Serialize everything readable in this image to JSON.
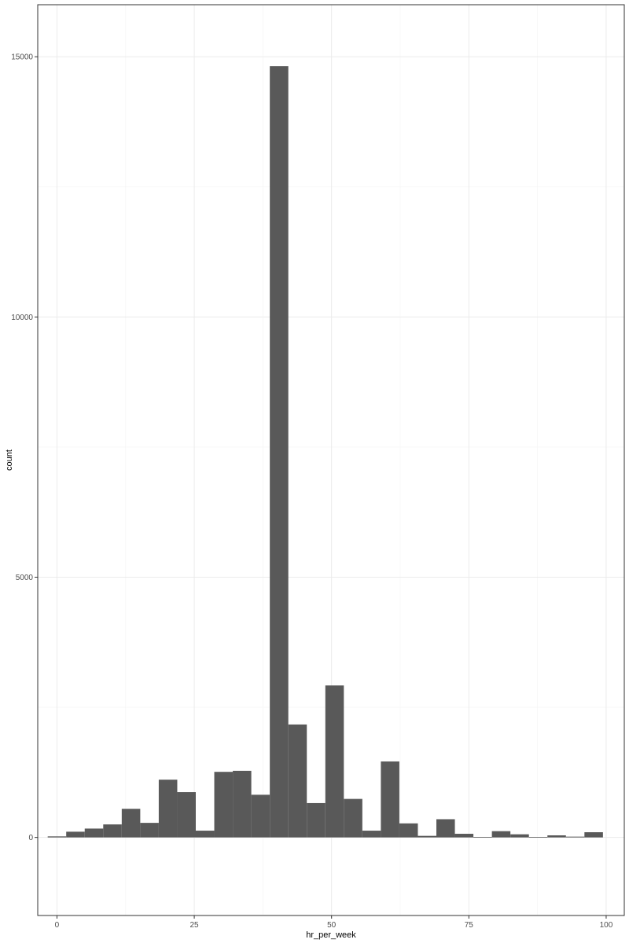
{
  "chart_data": {
    "type": "bar",
    "title": "",
    "xlabel": "hr_per_week",
    "ylabel": "count",
    "xlim": [
      -3.5,
      103.3
    ],
    "ylim": [
      -1500,
      16000
    ],
    "x_ticks": [
      0,
      25,
      50,
      75,
      100
    ],
    "y_ticks": [
      0,
      5000,
      10000,
      15000
    ],
    "grid": true,
    "legend": "none",
    "bin_width": 3.37,
    "bins": [
      {
        "x": 0.0,
        "count": 20
      },
      {
        "x": 3.37,
        "count": 110
      },
      {
        "x": 6.74,
        "count": 170
      },
      {
        "x": 10.11,
        "count": 250
      },
      {
        "x": 13.48,
        "count": 550
      },
      {
        "x": 16.85,
        "count": 280
      },
      {
        "x": 20.22,
        "count": 1110
      },
      {
        "x": 23.59,
        "count": 870
      },
      {
        "x": 26.96,
        "count": 130
      },
      {
        "x": 30.33,
        "count": 1260
      },
      {
        "x": 33.7,
        "count": 1280
      },
      {
        "x": 37.07,
        "count": 820
      },
      {
        "x": 40.44,
        "count": 14820
      },
      {
        "x": 43.81,
        "count": 2170
      },
      {
        "x": 47.18,
        "count": 660
      },
      {
        "x": 50.55,
        "count": 2920
      },
      {
        "x": 53.92,
        "count": 740
      },
      {
        "x": 57.29,
        "count": 130
      },
      {
        "x": 60.66,
        "count": 1460
      },
      {
        "x": 64.03,
        "count": 270
      },
      {
        "x": 67.4,
        "count": 30
      },
      {
        "x": 70.77,
        "count": 350
      },
      {
        "x": 74.14,
        "count": 70
      },
      {
        "x": 77.51,
        "count": 10
      },
      {
        "x": 80.88,
        "count": 120
      },
      {
        "x": 84.25,
        "count": 60
      },
      {
        "x": 87.62,
        "count": 10
      },
      {
        "x": 90.99,
        "count": 40
      },
      {
        "x": 94.36,
        "count": 15
      },
      {
        "x": 97.73,
        "count": 100
      }
    ],
    "colors": {
      "bar": "#595959",
      "grid_major": "#ebebeb",
      "grid_minor": "#f4f4f4",
      "panel_border": "#333333",
      "tick": "#333333"
    }
  }
}
